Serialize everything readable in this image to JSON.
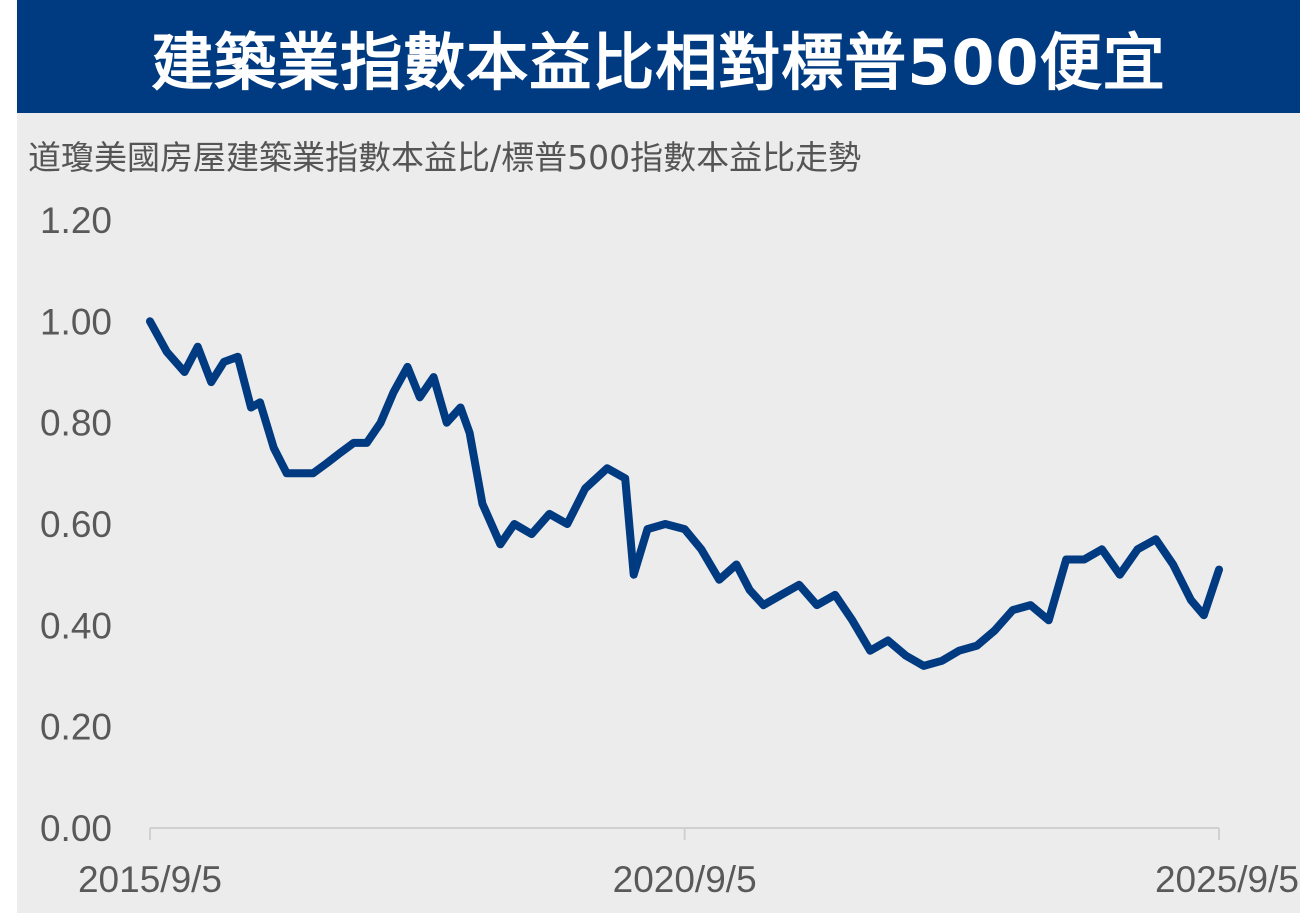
{
  "header": {
    "title": "建築業指數本益比相對標普500便宜",
    "subtitle": "道瓊美國房屋建築業指數本益比/標普500指數本益比走勢"
  },
  "colors": {
    "banner": "#003a80",
    "line": "#003a80",
    "background": "#ececec",
    "tick_text": "#595959"
  },
  "chart_data": {
    "type": "line",
    "title": "",
    "xlabel": "",
    "ylabel": "",
    "ylim": [
      0,
      1.2
    ],
    "y_ticks": [
      "0.00",
      "0.20",
      "0.40",
      "0.60",
      "0.80",
      "1.00",
      "1.20"
    ],
    "x_ticks": [
      "2015/9/5",
      "2020/9/5",
      "2025/9/5"
    ],
    "grid": false,
    "legend": "none",
    "series": [
      {
        "x": [
          "2015/9/5",
          "2015/11/1",
          "2016/1/1",
          "2016/2/15",
          "2016/4/1",
          "2016/5/15",
          "2016/7/1",
          "2016/8/15",
          "2016/9/15",
          "2016/11/1",
          "2016/12/15",
          "2017/2/1",
          "2017/3/15",
          "2017/5/1",
          "2017/6/15",
          "2017/8/1",
          "2017/9/15",
          "2017/11/1",
          "2017/12/15",
          "2018/2/1",
          "2018/3/15",
          "2018/5/1",
          "2018/6/15",
          "2018/8/1",
          "2018/9/1",
          "2018/10/15",
          "2018/12/15",
          "2019/2/1",
          "2019/4/1",
          "2019/6/1",
          "2019/8/1",
          "2019/10/1",
          "2019/12/15",
          "2020/2/15",
          "2020/3/15",
          "2020/5/1",
          "2020/7/1",
          "2020/9/5",
          "2020/11/1",
          "2021/1/1",
          "2021/3/1",
          "2021/4/15",
          "2021/6/1",
          "2021/8/1",
          "2021/10/1",
          "2021/12/1",
          "2022/2/1",
          "2022/4/1",
          "2022/6/1",
          "2022/8/1",
          "2022/10/1",
          "2022/12/1",
          "2023/2/1",
          "2023/4/1",
          "2023/6/1",
          "2023/8/1",
          "2023/10/1",
          "2023/12/1",
          "2024/2/1",
          "2024/4/1",
          "2024/6/1",
          "2024/8/1",
          "2024/10/1",
          "2024/12/1",
          "2025/2/1",
          "2025/4/1",
          "2025/6/1",
          "2025/7/15",
          "2025/9/5"
        ],
        "values": [
          1.0,
          0.94,
          0.9,
          0.95,
          0.88,
          0.92,
          0.93,
          0.83,
          0.84,
          0.75,
          0.7,
          0.7,
          0.7,
          0.72,
          0.74,
          0.76,
          0.76,
          0.8,
          0.86,
          0.91,
          0.85,
          0.89,
          0.8,
          0.83,
          0.78,
          0.64,
          0.56,
          0.6,
          0.58,
          0.62,
          0.6,
          0.67,
          0.71,
          0.69,
          0.5,
          0.59,
          0.6,
          0.59,
          0.55,
          0.49,
          0.52,
          0.47,
          0.44,
          0.46,
          0.48,
          0.44,
          0.46,
          0.41,
          0.35,
          0.37,
          0.34,
          0.32,
          0.33,
          0.35,
          0.36,
          0.39,
          0.43,
          0.44,
          0.41,
          0.53,
          0.53,
          0.55,
          0.5,
          0.55,
          0.57,
          0.52,
          0.45,
          0.42,
          0.51
        ]
      }
    ]
  }
}
